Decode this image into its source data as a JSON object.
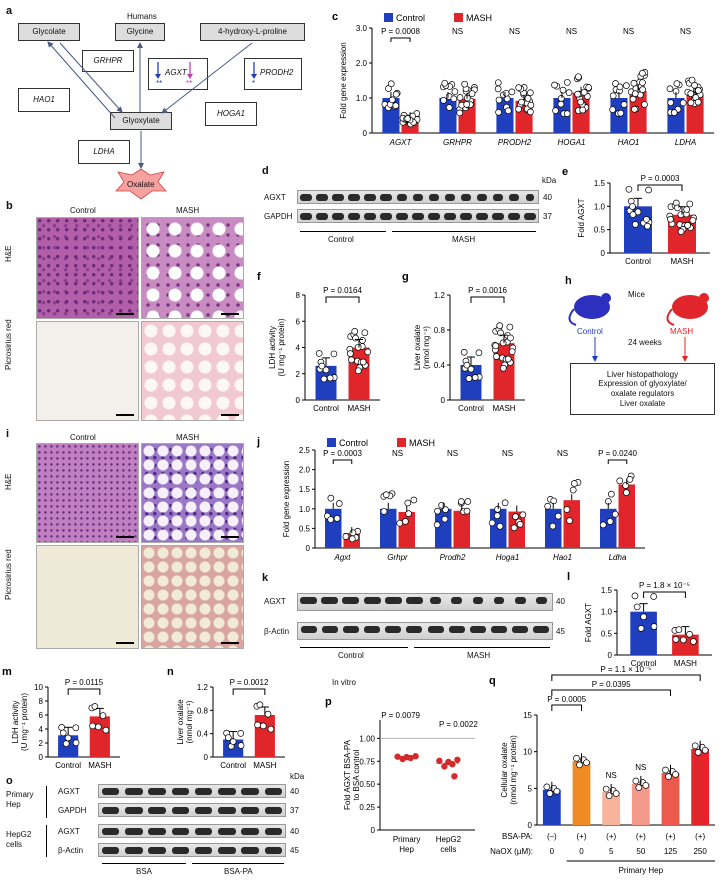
{
  "panels": {
    "a": {
      "letter": "a",
      "humans": "Humans",
      "glycolate": "Glycolate",
      "glycine": "Glycine",
      "hyp": "4-hydroxy-L-proline",
      "grhpr": "GRHPR",
      "agxt": "AGXT",
      "agxt_stars_blue": "**",
      "agxt_stars_pink": "**",
      "prodh2": "PRODH2",
      "prodh2_star": "*",
      "hao1": "HAO1",
      "glyoxylate": "Glyoxylate",
      "hoga1": "HOGA1",
      "ldha": "LDHA",
      "oxalate": "Oxalate"
    },
    "b": {
      "letter": "b",
      "control": "Control",
      "mash": "MASH",
      "row1": "H&E",
      "row2": "Picrosirius red"
    },
    "d": {
      "letter": "d",
      "agxt": "AGXT",
      "gapdh": "GAPDH",
      "kda": "kDa",
      "m1": "40",
      "m2": "37",
      "control": "Control",
      "mash": "MASH"
    },
    "h": {
      "letter": "h",
      "mice": "Mice",
      "control": "Control",
      "mash": "MASH",
      "weeks": "24 weeks",
      "out1": "Liver histopathology",
      "out2": "Expression of glyoxylate/",
      "out3": "oxalate regulators",
      "out4": "Liver oxalate"
    },
    "i": {
      "letter": "i",
      "control": "Control",
      "mash": "MASH",
      "row1": "H&E",
      "row2": "Picrosirius red"
    },
    "k": {
      "letter": "k",
      "agxt": "AGXT",
      "actin": "β-Actin",
      "m1": "40",
      "m2": "45",
      "control": "Control",
      "mash": "MASH"
    },
    "o": {
      "letter": "o",
      "row1": "Primary",
      "row1b": "Hep",
      "row2": "HepG2",
      "row2b": "cells",
      "agxt": "AGXT",
      "gapdh": "GAPDH",
      "agxt2": "AGXT",
      "actin": "β-Actin",
      "kda": "kDa",
      "m1": "40",
      "m2": "37",
      "m3": "40",
      "m4": "45",
      "bsa": "BSA",
      "bsapa": "BSA-PA"
    },
    "invitro": "In vitro"
  },
  "chart_data": [
    {
      "id": "c",
      "letter": "c",
      "type": "bar",
      "ylabel": "Fold gene expression",
      "ylim": [
        0,
        3
      ],
      "yticks": [
        "0",
        "1.0",
        "2.0",
        "3.0"
      ],
      "categories": [
        "AGXT",
        "GRHPR",
        "PRODH2",
        "HOGA1",
        "HAO1",
        "LDHA"
      ],
      "series": [
        {
          "name": "Control",
          "color": "#1f3fbf",
          "values": [
            1.0,
            1.0,
            1.0,
            1.0,
            1.0,
            1.0
          ]
        },
        {
          "name": "MASH",
          "color": "#e0262a",
          "values": [
            0.42,
            0.98,
            0.92,
            1.15,
            1.2,
            1.1
          ]
        }
      ],
      "annotations": [
        "P = 0.0008",
        "NS",
        "NS",
        "NS",
        "NS",
        "NS"
      ]
    },
    {
      "id": "e",
      "letter": "e",
      "type": "bar",
      "ylabel": "Fold AGXT",
      "ylim": [
        0,
        1.5
      ],
      "yticks": [
        "0",
        "0.5",
        "1.0",
        "1.5"
      ],
      "categories": [
        "Control",
        "MASH"
      ],
      "values": [
        1.0,
        0.82
      ],
      "colors": [
        "#1f3fbf",
        "#e0262a"
      ],
      "annotation": "P = 0.0003"
    },
    {
      "id": "f",
      "letter": "f",
      "type": "bar",
      "ylabel": "LDH activity",
      "ylabel2": "(U mg⁻¹ protein)",
      "ylim": [
        0,
        8
      ],
      "yticks": [
        "0",
        "2",
        "4",
        "6",
        "8"
      ],
      "categories": [
        "Control",
        "MASH"
      ],
      "values": [
        2.6,
        4.0
      ],
      "colors": [
        "#1f3fbf",
        "#e0262a"
      ],
      "annotation": "P = 0.0164"
    },
    {
      "id": "g",
      "letter": "g",
      "type": "bar",
      "ylabel": "Liver oxalate",
      "ylabel2": "(nmol mg⁻¹)",
      "ylim": [
        0,
        1.2
      ],
      "yticks": [
        "0",
        "0.4",
        "0.8",
        "1.2"
      ],
      "categories": [
        "Control",
        "MASH"
      ],
      "values": [
        0.4,
        0.65
      ],
      "colors": [
        "#1f3fbf",
        "#e0262a"
      ],
      "annotation": "P = 0.0016"
    },
    {
      "id": "j",
      "letter": "j",
      "type": "bar",
      "ylabel": "Fold gene expression",
      "ylim": [
        0,
        2.5
      ],
      "yticks": [
        "0",
        "0.5",
        "1.0",
        "1.5",
        "2.0",
        "2.5"
      ],
      "categories": [
        "Agxt",
        "Grhpr",
        "Prodh2",
        "Hoga1",
        "Hao1",
        "Ldha"
      ],
      "series": [
        {
          "name": "Control",
          "color": "#1f3fbf",
          "values": [
            1.0,
            1.0,
            1.0,
            1.0,
            1.0,
            1.0
          ]
        },
        {
          "name": "MASH",
          "color": "#e0262a",
          "values": [
            0.38,
            0.92,
            0.95,
            0.93,
            1.22,
            1.62
          ]
        }
      ],
      "annotations": [
        "P = 0.0003",
        "NS",
        "NS",
        "NS",
        "NS",
        "P = 0.0240"
      ]
    },
    {
      "id": "l",
      "letter": "l",
      "type": "bar",
      "ylabel": "Fold AGXT",
      "ylim": [
        0,
        1.5
      ],
      "yticks": [
        "0",
        "0.5",
        "1.0",
        "1.5"
      ],
      "categories": [
        "Control",
        "MASH"
      ],
      "values": [
        1.0,
        0.47
      ],
      "colors": [
        "#1f3fbf",
        "#e0262a"
      ],
      "annotation": "P = 1.8 × 10⁻⁵"
    },
    {
      "id": "m",
      "letter": "m",
      "type": "bar",
      "ylabel": "LDH activity",
      "ylabel2": "(U mg⁻¹ protein)",
      "ylim": [
        0,
        10
      ],
      "yticks": [
        "0",
        "2",
        "4",
        "6",
        "8",
        "10"
      ],
      "categories": [
        "Control",
        "MASH"
      ],
      "values": [
        3.1,
        5.8
      ],
      "colors": [
        "#1f3fbf",
        "#e0262a"
      ],
      "annotation": "P = 0.0115"
    },
    {
      "id": "n",
      "letter": "n",
      "type": "bar",
      "ylabel": "Liver oxalate",
      "ylabel2": "(nmol mg⁻¹)",
      "ylim": [
        0,
        1.2
      ],
      "yticks": [
        "0",
        "0.4",
        "0.8",
        "1.2"
      ],
      "categories": [
        "Control",
        "MASH"
      ],
      "values": [
        0.3,
        0.72
      ],
      "colors": [
        "#1f3fbf",
        "#e0262a"
      ],
      "annotation": "P = 0.0012"
    },
    {
      "id": "p",
      "letter": "p",
      "type": "scatter",
      "ylabel": "Fold AGXT BSA-PA",
      "ylabel2": "to BSA control",
      "ylim": [
        0,
        1.2
      ],
      "yticks": [
        "0",
        "0.25",
        "0.50",
        "0.75",
        "1.00"
      ],
      "categories": [
        "Primary Hep",
        "HepG2 cells"
      ],
      "values": [
        0.79,
        0.73
      ],
      "color": "#d62a2a",
      "annotations": [
        "P = 0.0079",
        "P = 0.0022"
      ]
    },
    {
      "id": "q",
      "letter": "q",
      "type": "bar",
      "ylabel": "Cellular oxalate",
      "ylabel2": "(nmol mg⁻¹ protein)",
      "ylim": [
        0,
        15
      ],
      "yticks": [
        "0",
        "5",
        "10",
        "15"
      ],
      "row1_label": "BSA-PA:",
      "row1": [
        "(–)",
        "(+)",
        "(+)",
        "(+)",
        "(+)",
        "(+)"
      ],
      "row2_label": "NaOX (µM):",
      "row2": [
        "0",
        "0",
        "5",
        "50",
        "125",
        "250"
      ],
      "footer": "Primary Hep",
      "values": [
        4.8,
        8.7,
        4.5,
        5.6,
        7.1,
        10.4
      ],
      "colors": [
        "#1f3fbf",
        "#f08a24",
        "#f7b49a",
        "#f49a8a",
        "#ec5a4e",
        "#e0262a"
      ],
      "annotations": [
        "P = 1.1 × 10⁻⁵",
        "P = 0.0395",
        "P = 0.0005",
        "NS",
        "NS"
      ]
    }
  ]
}
